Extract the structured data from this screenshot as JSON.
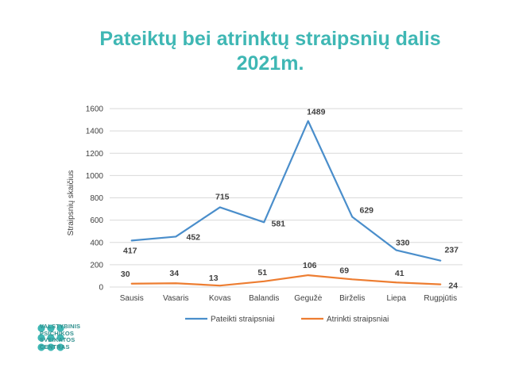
{
  "title_line1": "Pateiktų bei atrinktų straipsnių dalis",
  "title_line2": "2021m.",
  "logo": {
    "lines": [
      "VALSTYBINIS",
      "PSICHIKOS",
      "SVEIKATOS",
      "CENTRAS"
    ],
    "color": "#3fb7b4"
  },
  "chart_data": {
    "type": "line",
    "categories": [
      "Sausis",
      "Vasaris",
      "Kovas",
      "Balandis",
      "Gegužė",
      "Birželis",
      "Liepa",
      "Rugpjūtis"
    ],
    "series": [
      {
        "name": "Pateikti straipsniai",
        "values": [
          417,
          452,
          715,
          581,
          1489,
          629,
          330,
          237
        ],
        "color": "#4a8ecb"
      },
      {
        "name": "Atrinkti straipsniai",
        "values": [
          30,
          34,
          13,
          51,
          106,
          69,
          41,
          24
        ],
        "color": "#ed7d31"
      }
    ],
    "ylabel": "Straipsnių skaičius",
    "ylim": [
      0,
      1600
    ],
    "yticks": [
      0,
      200,
      400,
      600,
      800,
      1000,
      1200,
      1400,
      1600
    ],
    "grid": true,
    "legend": "bottom"
  }
}
